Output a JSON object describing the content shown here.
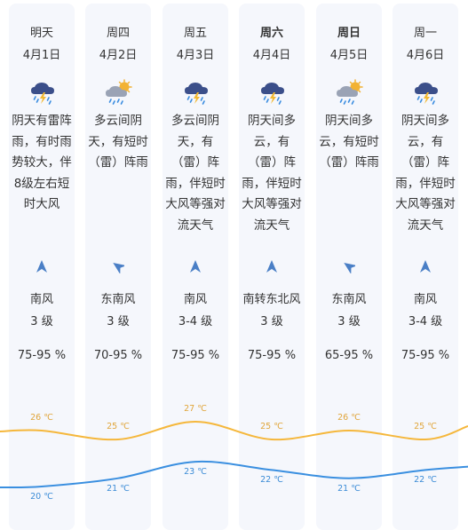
{
  "days": [
    {
      "day": "明天",
      "date": "4月1日",
      "bold": false,
      "icon": "thunderstorm-icon",
      "desc": "阴天有雷阵雨，有时雨势较大，伴8级左右短时大风",
      "wind_direction_icon": "wind-north-arrow-icon",
      "wind_dir": "南风",
      "wind_level": "3 级",
      "humidity": "75-95 %",
      "high": "26 ℃",
      "low": "20 ℃"
    },
    {
      "day": "周四",
      "date": "4月2日",
      "bold": false,
      "icon": "cloudy-sun-rain-icon",
      "desc": "多云间阴天，有短时（雷）阵雨",
      "wind_direction_icon": "wind-northwest-arrow-icon",
      "wind_dir": "东南风",
      "wind_level": "3 级",
      "humidity": "70-95 %",
      "high": "25 ℃",
      "low": "21 ℃"
    },
    {
      "day": "周五",
      "date": "4月3日",
      "bold": false,
      "icon": "thunderstorm-icon",
      "desc": "多云间阴天，有（雷）阵雨，伴短时大风等强对流天气",
      "wind_direction_icon": "wind-north-arrow-icon",
      "wind_dir": "南风",
      "wind_level": "3-4 级",
      "humidity": "75-95 %",
      "high": "27 ℃",
      "low": "23 ℃"
    },
    {
      "day": "周六",
      "date": "4月4日",
      "bold": true,
      "icon": "thunderstorm-icon",
      "desc": "阴天间多云，有（雷）阵雨，伴短时大风等强对流天气",
      "wind_direction_icon": "wind-north-arrow-icon",
      "wind_dir": "南转东北风",
      "wind_level": "3 级",
      "humidity": "75-95 %",
      "high": "25 ℃",
      "low": "22 ℃"
    },
    {
      "day": "周日",
      "date": "4月5日",
      "bold": true,
      "icon": "cloudy-sun-rain-icon",
      "desc": "阴天间多云，有短时（雷）阵雨",
      "wind_direction_icon": "wind-northwest-arrow-icon",
      "wind_dir": "东南风",
      "wind_level": "3 级",
      "humidity": "65-95 %",
      "high": "26 ℃",
      "low": "21 ℃"
    },
    {
      "day": "周一",
      "date": "4月6日",
      "bold": false,
      "icon": "thunderstorm-icon",
      "desc": "阴天间多云，有（雷）阵雨，伴短时大风等强对流天气",
      "wind_direction_icon": "wind-north-arrow-icon",
      "wind_dir": "南风",
      "wind_level": "3-4 级",
      "humidity": "75-95 %",
      "high": "25 ℃",
      "low": "22 ℃"
    }
  ],
  "temps": {
    "high": [
      26,
      25,
      27,
      25,
      26,
      25
    ],
    "low": [
      20,
      21,
      23,
      22,
      21,
      22
    ]
  },
  "colors": {
    "high_line": "#f5b73b",
    "low_line": "#3a8fe0",
    "cloud": "#3b4f8a",
    "cloud_grey": "#9aa3b5",
    "sun": "#f2b233",
    "rain": "#3b8de0",
    "bolt": "#f1b934",
    "arrow": "#4a7fc6",
    "column_bg": "#f5f7fc"
  }
}
